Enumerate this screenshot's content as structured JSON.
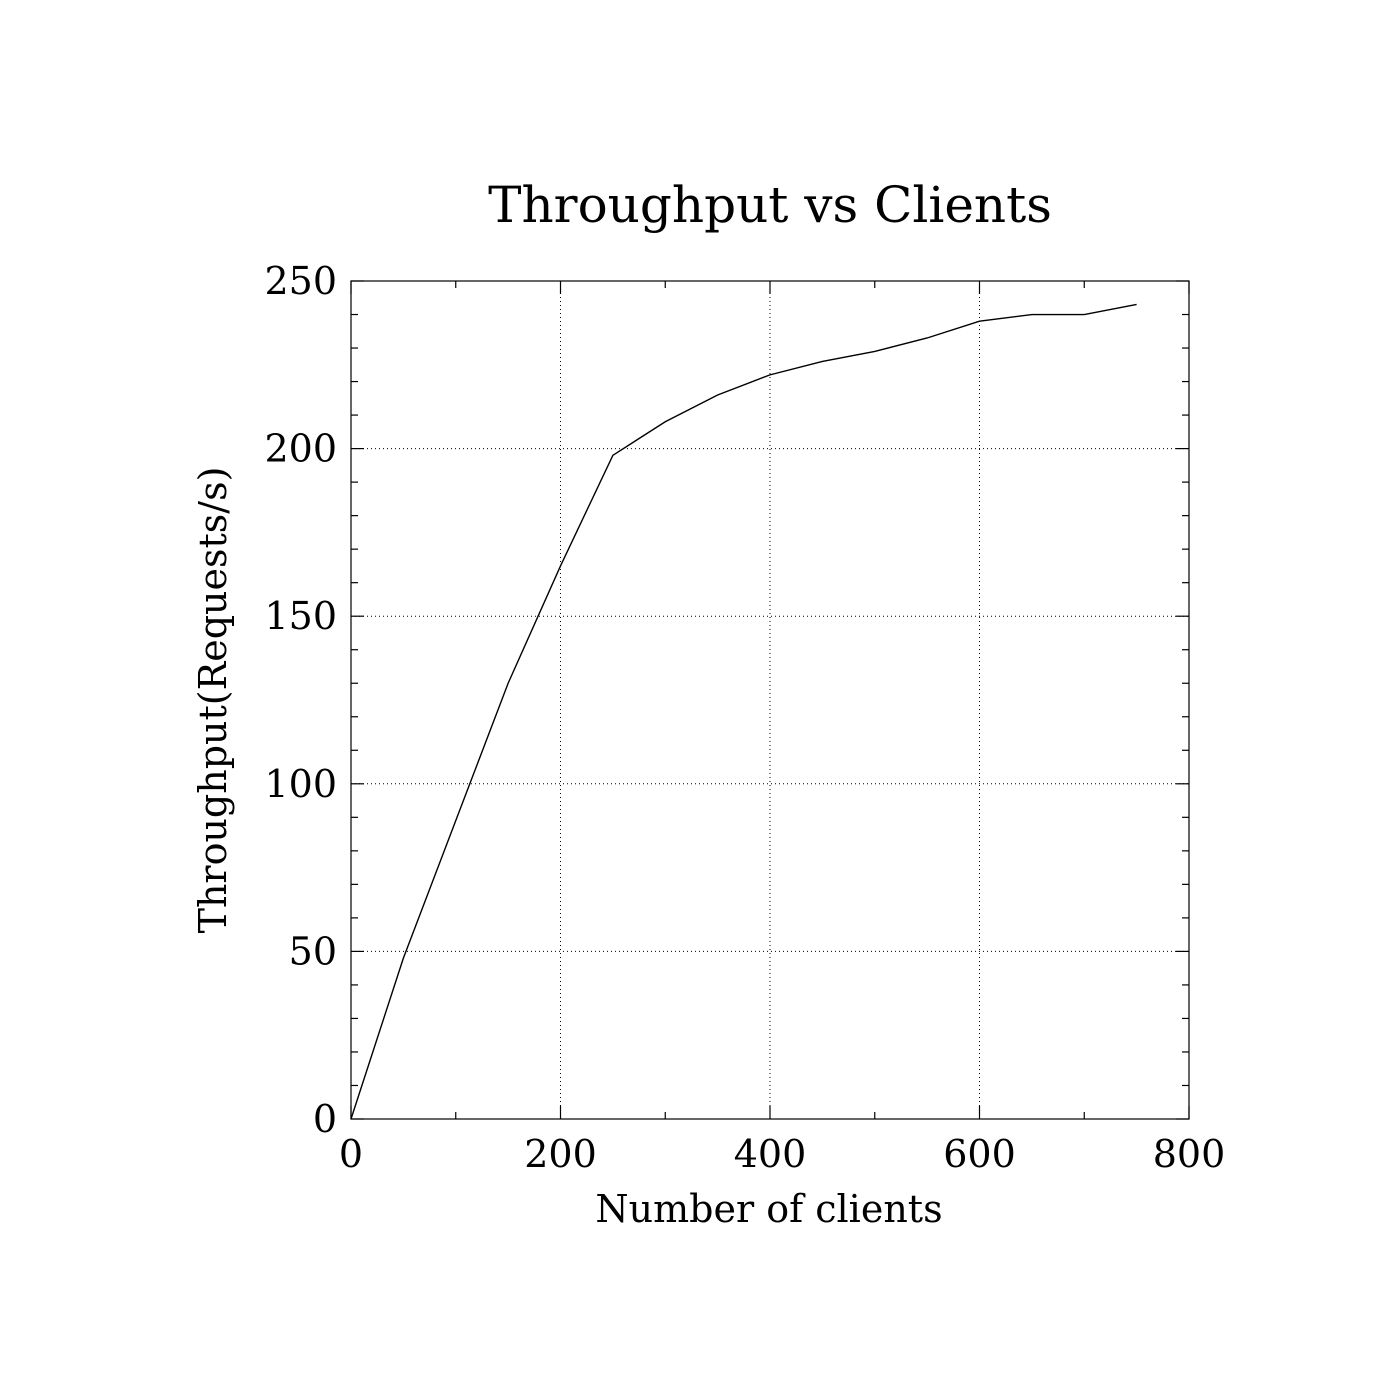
{
  "chart_data": {
    "type": "line",
    "title": "Throughput vs Clients",
    "xlabel": "Number of clients",
    "ylabel": "Throughput(Requests/s)",
    "xlim": [
      0,
      800
    ],
    "ylim": [
      0,
      250
    ],
    "x_ticks": [
      0,
      200,
      400,
      600,
      800
    ],
    "y_ticks": [
      0,
      50,
      100,
      150,
      200,
      250
    ],
    "x_minor_step": 100,
    "y_minor_step": 10,
    "grid": true,
    "series": [
      {
        "color": "#000000",
        "x": [
          0,
          50,
          100,
          150,
          200,
          250,
          300,
          350,
          400,
          450,
          500,
          550,
          600,
          650,
          700,
          750
        ],
        "y": [
          0,
          48,
          89,
          130,
          165,
          198,
          208,
          216,
          222,
          226,
          229,
          233,
          238,
          240,
          240,
          243
        ]
      }
    ]
  }
}
